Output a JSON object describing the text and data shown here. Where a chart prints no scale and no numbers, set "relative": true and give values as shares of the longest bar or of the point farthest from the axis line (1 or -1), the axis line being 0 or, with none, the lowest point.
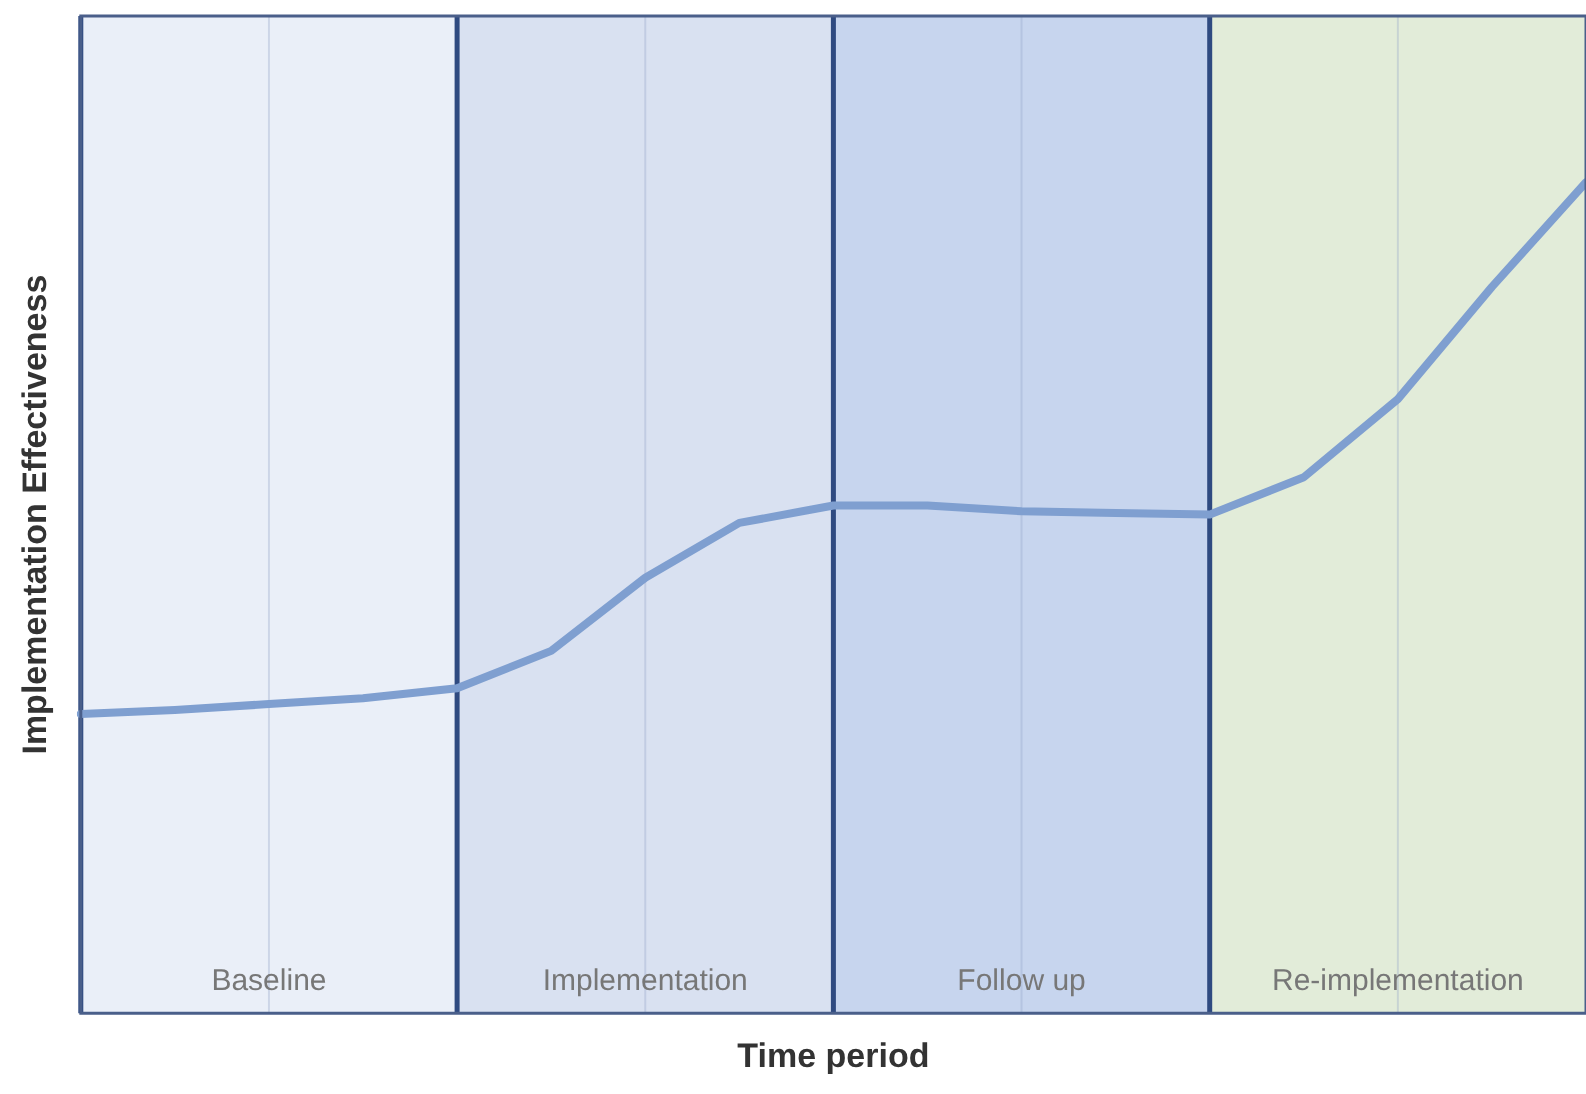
{
  "chart_data": {
    "type": "line",
    "xlabel": "Time period",
    "ylabel": "Implementation Effectiveness",
    "relative": true,
    "grid": "x",
    "marker": "none",
    "line_style": "solid",
    "categories": [
      null,
      null,
      null,
      null,
      null,
      null,
      null,
      null,
      null,
      null,
      null,
      null,
      null,
      null,
      null,
      null,
      null
    ],
    "series": [
      {
        "color": "#7f9fd0",
        "values": [
          0.36,
          0.365,
          0.372,
          0.379,
          0.391,
          0.436,
          0.524,
          0.59,
          0.611,
          0.611,
          0.604,
          0.602,
          0.6,
          0.645,
          0.739,
          0.874,
          1
        ]
      }
    ],
    "annotations": [
      "Baseline",
      "Implementation",
      "Follow up",
      "Re-implementation"
    ]
  }
}
